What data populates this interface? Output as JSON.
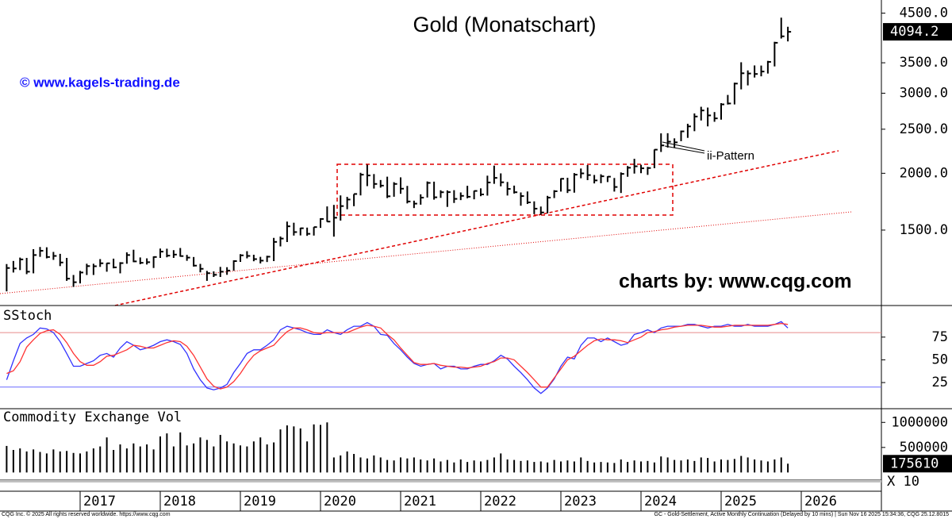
{
  "chart_data": {
    "x": [
      2016.083,
      2016.167,
      2016.25,
      2016.333,
      2016.417,
      2016.5,
      2016.583,
      2016.667,
      2016.75,
      2016.833,
      2016.917,
      2017.0,
      2017.083,
      2017.167,
      2017.25,
      2017.333,
      2017.417,
      2017.5,
      2017.583,
      2017.667,
      2017.75,
      2017.833,
      2017.917,
      2018.0,
      2018.083,
      2018.167,
      2018.25,
      2018.333,
      2018.417,
      2018.5,
      2018.583,
      2018.667,
      2018.75,
      2018.833,
      2018.917,
      2019.0,
      2019.083,
      2019.167,
      2019.25,
      2019.333,
      2019.417,
      2019.5,
      2019.583,
      2019.667,
      2019.75,
      2019.833,
      2019.917,
      2020.0,
      2020.083,
      2020.167,
      2020.25,
      2020.333,
      2020.417,
      2020.5,
      2020.583,
      2020.667,
      2020.75,
      2020.833,
      2020.917,
      2021.0,
      2021.083,
      2021.167,
      2021.25,
      2021.333,
      2021.417,
      2021.5,
      2021.583,
      2021.667,
      2021.75,
      2021.833,
      2021.917,
      2022.0,
      2022.083,
      2022.167,
      2022.25,
      2022.333,
      2022.417,
      2022.5,
      2022.583,
      2022.667,
      2022.75,
      2022.833,
      2022.917,
      2023.0,
      2023.083,
      2023.167,
      2023.25,
      2023.333,
      2023.417,
      2023.5,
      2023.583,
      2023.667,
      2023.75,
      2023.833,
      2023.917,
      2024.0,
      2024.083,
      2024.167,
      2024.25,
      2024.333,
      2024.417,
      2024.5,
      2024.583,
      2024.667,
      2024.75,
      2024.833,
      2024.917,
      2025.0,
      2025.083,
      2025.167,
      2025.25,
      2025.333,
      2025.417,
      2025.5,
      2025.583,
      2025.667,
      2025.75,
      2025.833
    ],
    "xlim": [
      2016.0,
      2027.0
    ],
    "xticks": [
      2017,
      2018,
      2019,
      2020,
      2021,
      2022,
      2023,
      2024,
      2025,
      2026
    ],
    "panels": [
      {
        "type": "ohlc",
        "title": "Gold (Monatschart)",
        "log": true,
        "color": "#000000",
        "ylim": [
          1032,
          4733
        ],
        "yticks": [
          {
            "value": 1500,
            "label": "1500.0"
          },
          {
            "value": 2000,
            "label": "2000.0"
          },
          {
            "value": 2500,
            "label": "2500.0"
          },
          {
            "value": 3000,
            "label": "3000.0"
          },
          {
            "value": 3500,
            "label": "3500.0"
          },
          {
            "value": 4500,
            "label": "4500.0"
          }
        ],
        "high": [
          1263,
          1283,
          1305,
          1303,
          1362,
          1377,
          1375,
          1343,
          1330,
          1303,
          1195,
          1220,
          1265,
          1265,
          1295,
          1270,
          1298,
          1275,
          1340,
          1358,
          1306,
          1300,
          1313,
          1366,
          1365,
          1355,
          1370,
          1323,
          1309,
          1264,
          1220,
          1217,
          1245,
          1243,
          1287,
          1328,
          1348,
          1324,
          1310,
          1317,
          1442,
          1452,
          1566,
          1557,
          1518,
          1519,
          1523,
          1593,
          1691,
          1704,
          1788,
          1775,
          1800,
          2005,
          2089,
          1992,
          1933,
          1966,
          1912,
          1959,
          1876,
          1741,
          1798,
          1919,
          1917,
          1835,
          1834,
          1836,
          1815,
          1877,
          1831,
          1853,
          1976,
          2079,
          1999,
          1914,
          1879,
          1815,
          1824,
          1735,
          1690,
          1784,
          1836,
          1950,
          1955,
          2002,
          2049,
          2085,
          1983,
          1990,
          1970,
          1953,
          2009,
          2075,
          2152,
          2088,
          2066,
          2256,
          2448,
          2450,
          2387,
          2483,
          2570,
          2708,
          2801,
          2790,
          2727,
          2853,
          2974,
          3164,
          3509,
          3367,
          3453,
          3451,
          3534,
          3892,
          4398,
          4200
        ],
        "low": [
          1100,
          1210,
          1225,
          1200,
          1205,
          1310,
          1300,
          1290,
          1250,
          1160,
          1125,
          1145,
          1195,
          1195,
          1245,
          1215,
          1236,
          1205,
          1265,
          1275,
          1262,
          1260,
          1238,
          1303,
          1307,
          1303,
          1311,
          1284,
          1247,
          1211,
          1160,
          1183,
          1183,
          1196,
          1221,
          1277,
          1300,
          1281,
          1267,
          1276,
          1282,
          1381,
          1412,
          1459,
          1460,
          1457,
          1459,
          1517,
          1564,
          1451,
          1574,
          1667,
          1693,
          1788,
          1874,
          1851,
          1860,
          1764,
          1776,
          1803,
          1717,
          1677,
          1706,
          1769,
          1750,
          1766,
          1687,
          1721,
          1746,
          1762,
          1753,
          1781,
          1786,
          1896,
          1872,
          1787,
          1805,
          1697,
          1712,
          1626,
          1621,
          1633,
          1764,
          1823,
          1810,
          1813,
          1950,
          1932,
          1900,
          1902,
          1913,
          1823,
          1810,
          1965,
          1997,
          2001,
          1984,
          2052,
          2228,
          2278,
          2277,
          2353,
          2393,
          2475,
          2613,
          2536,
          2596,
          2624,
          2833,
          2834,
          3059,
          3121,
          3248,
          3268,
          3314,
          3436,
          3957,
          3900
        ],
        "close": [
          1238,
          1235,
          1293,
          1215,
          1322,
          1351,
          1309,
          1316,
          1273,
          1173,
          1152,
          1210,
          1250,
          1249,
          1268,
          1268,
          1242,
          1269,
          1322,
          1280,
          1271,
          1275,
          1309,
          1345,
          1318,
          1325,
          1315,
          1305,
          1253,
          1233,
          1206,
          1196,
          1215,
          1222,
          1282,
          1320,
          1316,
          1295,
          1285,
          1311,
          1413,
          1437,
          1529,
          1485,
          1514,
          1472,
          1523,
          1587,
          1566,
          1597,
          1694,
          1751,
          1801,
          1986,
          1978,
          1895,
          1879,
          1780,
          1895,
          1850,
          1734,
          1715,
          1768,
          1905,
          1771,
          1817,
          1818,
          1757,
          1784,
          1776,
          1829,
          1797,
          1909,
          1954,
          1911,
          1848,
          1817,
          1782,
          1726,
          1672,
          1640,
          1768,
          1826,
          1945,
          1836,
          1986,
          1999,
          1982,
          1929,
          1970,
          1966,
          1866,
          1994,
          2057,
          2072,
          2051,
          2054,
          2254,
          2303,
          2347,
          2339,
          2473,
          2536,
          2666,
          2749,
          2681,
          2641,
          2835,
          2848,
          3150,
          3319,
          3315,
          3307,
          3348,
          3516,
          3873,
          4002,
          4094.2
        ],
        "last_label": "4094.2",
        "annotations": {
          "watermark": "© www.kagels-trading.de",
          "source": "charts by: www.cqg.com",
          "pattern": "ii-Pattern"
        }
      },
      {
        "type": "line",
        "title": "SStoch",
        "ylim": [
          -2,
          108
        ],
        "yticks": [
          25,
          50,
          75
        ],
        "levels": [
          {
            "value": 80,
            "color": "#e88a8a"
          },
          {
            "value": 20,
            "color": "#6a6aff"
          }
        ],
        "series": [
          {
            "color": "#3333ff",
            "values": [
              28,
              49,
              68,
              74,
              78,
              85,
              84,
              80,
              70,
              57,
              43,
              43,
              46,
              49,
              55,
              57,
              53,
              63,
              70,
              66,
              61,
              63,
              66,
              70,
              72,
              70,
              67,
              57,
              40,
              28,
              19,
              17,
              19,
              23,
              36,
              46,
              57,
              61,
              61,
              66,
              72,
              83,
              87,
              85,
              83,
              80,
              78,
              78,
              83,
              80,
              78,
              83,
              87,
              87,
              91,
              87,
              78,
              77,
              68,
              61,
              53,
              46,
              43,
              45,
              46,
              40,
              43,
              43,
              40,
              40,
              43,
              45,
              45,
              49,
              55,
              51,
              43,
              36,
              28,
              19,
              13,
              19,
              29,
              43,
              53,
              51,
              66,
              74,
              74,
              70,
              74,
              70,
              66,
              68,
              78,
              80,
              83,
              80,
              85,
              87,
              87,
              87,
              89,
              89,
              87,
              85,
              87,
              87,
              89,
              87,
              87,
              89,
              87,
              87,
              87,
              89,
              92,
              85
            ]
          },
          {
            "color": "#ff3333",
            "values": [
              35,
              38,
              48,
              64,
              72,
              79,
              82,
              83,
              78,
              69,
              57,
              48,
              44,
              44,
              48,
              54,
              55,
              58,
              61,
              66,
              65,
              63,
              63,
              66,
              69,
              71,
              70,
              65,
              55,
              42,
              29,
              21,
              18,
              20,
              26,
              35,
              46,
              55,
              60,
              63,
              66,
              74,
              81,
              85,
              85,
              83,
              80,
              79,
              80,
              80,
              80,
              80,
              83,
              86,
              88,
              87,
              85,
              78,
              72,
              63,
              55,
              47,
              45,
              45,
              46,
              44,
              43,
              42,
              42,
              41,
              42,
              43,
              46,
              48,
              52,
              52,
              50,
              43,
              36,
              28,
              20,
              20,
              30,
              40,
              50,
              54,
              60,
              66,
              71,
              73,
              72,
              72,
              71,
              69,
              72,
              75,
              80,
              81,
              83,
              84,
              86,
              87,
              88,
              88,
              88,
              87,
              86,
              86,
              87,
              88,
              88,
              88,
              88,
              88,
              88,
              89,
              90,
              89
            ]
          }
        ]
      },
      {
        "type": "bar",
        "title": "Commodity Exchange Vol",
        "color": "#000000",
        "ylim": [
          -121000,
          1242000
        ],
        "yticks": [
          500000,
          1000000
        ],
        "values": [
          530000,
          450000,
          480000,
          420000,
          460000,
          410000,
          380000,
          460000,
          420000,
          430000,
          390000,
          380000,
          420000,
          480000,
          520000,
          700000,
          450000,
          560000,
          480000,
          580000,
          520000,
          560000,
          460000,
          720000,
          780000,
          520000,
          800000,
          540000,
          580000,
          700000,
          650000,
          520000,
          750000,
          620000,
          580000,
          540000,
          520000,
          620000,
          700000,
          560000,
          600000,
          860000,
          940000,
          920000,
          880000,
          620000,
          960000,
          950000,
          1000000,
          300000,
          340000,
          420000,
          370000,
          300000,
          280000,
          340000,
          300000,
          250000,
          240000,
          300000,
          280000,
          300000,
          260000,
          240000,
          280000,
          220000,
          250000,
          200000,
          260000,
          210000,
          240000,
          220000,
          250000,
          300000,
          380000,
          260000,
          250000,
          230000,
          240000,
          210000,
          220000,
          200000,
          250000,
          220000,
          240000,
          220000,
          300000,
          230000,
          200000,
          210000,
          200000,
          190000,
          260000,
          210000,
          240000,
          220000,
          230000,
          200000,
          320000,
          300000,
          250000,
          240000,
          260000,
          230000,
          300000,
          290000,
          220000,
          260000,
          250000,
          270000,
          330000,
          300000,
          260000,
          240000,
          220000,
          260000,
          300000,
          175610
        ],
        "last_label": "175610",
        "multiplier_label": "X 10"
      }
    ],
    "footer": {
      "left": "CQG Inc. © 2025 All rights reserved worldwide. https://www.cqg.com",
      "right": "GC - Gold-Settlement, Active Monthly Continuation (Delayed by 10 mins) | Sun Nov 16 2025 15:34:36, CQG 25.12.8015"
    }
  }
}
